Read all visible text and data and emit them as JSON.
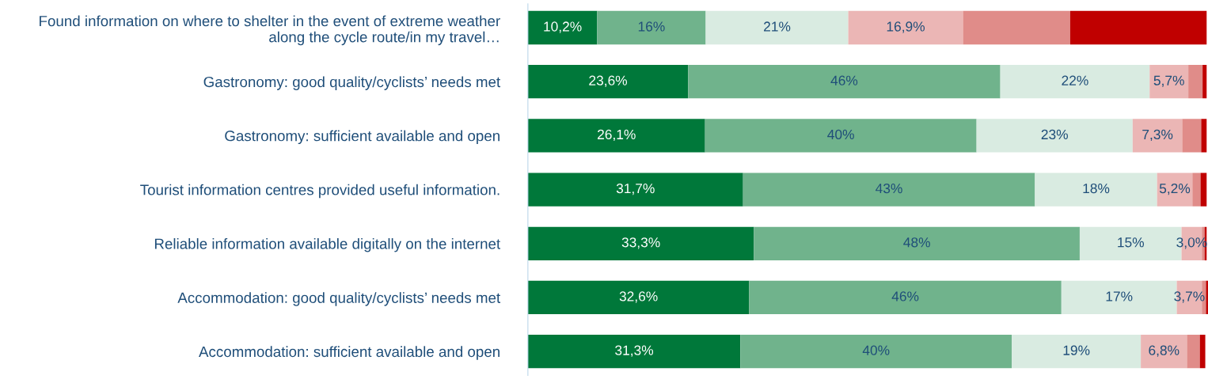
{
  "chart_data": {
    "type": "bar",
    "orientation": "horizontal",
    "stacked": true,
    "grid": false,
    "legend": false,
    "categories": [
      "Found information on where to shelter in the event of extreme weather along the cycle route/in my travel…",
      "Gastronomy: good quality/cyclists’ needs met",
      "Gastronomy: sufficient available and open",
      "Tourist information centres provided useful information.",
      "Reliable information available digitally on the internet",
      "Accommodation: good quality/cyclists’ needs met",
      "Accommodation: sufficient available and open"
    ],
    "series": [
      {
        "color": "#00783a",
        "values": [
          10.2,
          23.6,
          26.1,
          31.7,
          33.3,
          32.6,
          31.3
        ],
        "value_labels": [
          "10,2%",
          "23,6%",
          "26,1%",
          "31,7%",
          "33,3%",
          "32,6%",
          "31,3%"
        ]
      },
      {
        "color": "#70b38c",
        "values": [
          16,
          46,
          40,
          43,
          48,
          46,
          40
        ],
        "value_labels": [
          "16%",
          "46%",
          "40%",
          "43%",
          "48%",
          "46%",
          "40%"
        ]
      },
      {
        "color": "#d9ebe1",
        "values": [
          21,
          22,
          23,
          18,
          15,
          17,
          19
        ],
        "value_labels": [
          "21%",
          "22%",
          "23%",
          "18%",
          "15%",
          "17%",
          "19%"
        ]
      },
      {
        "color": "#ebb6b5",
        "values": [
          16.9,
          5.7,
          7.3,
          5.2,
          3.0,
          3.7,
          6.8
        ],
        "value_labels": [
          "16,9%",
          "5,7%",
          "7,3%",
          "5,2%",
          "3,0%",
          "3,7%",
          "6,8%"
        ]
      },
      {
        "color": "#e08c89",
        "values": [
          15.8,
          2.1,
          2.8,
          1.2,
          0.4,
          0.6,
          1.9
        ],
        "value_labels": [
          null,
          null,
          null,
          null,
          null,
          null,
          null
        ]
      },
      {
        "color": "#c00000",
        "values": [
          20.1,
          0.6,
          0.8,
          0.9,
          0.3,
          0.3,
          0.8
        ],
        "value_labels": [
          null,
          null,
          null,
          null,
          null,
          null,
          null
        ]
      }
    ]
  }
}
